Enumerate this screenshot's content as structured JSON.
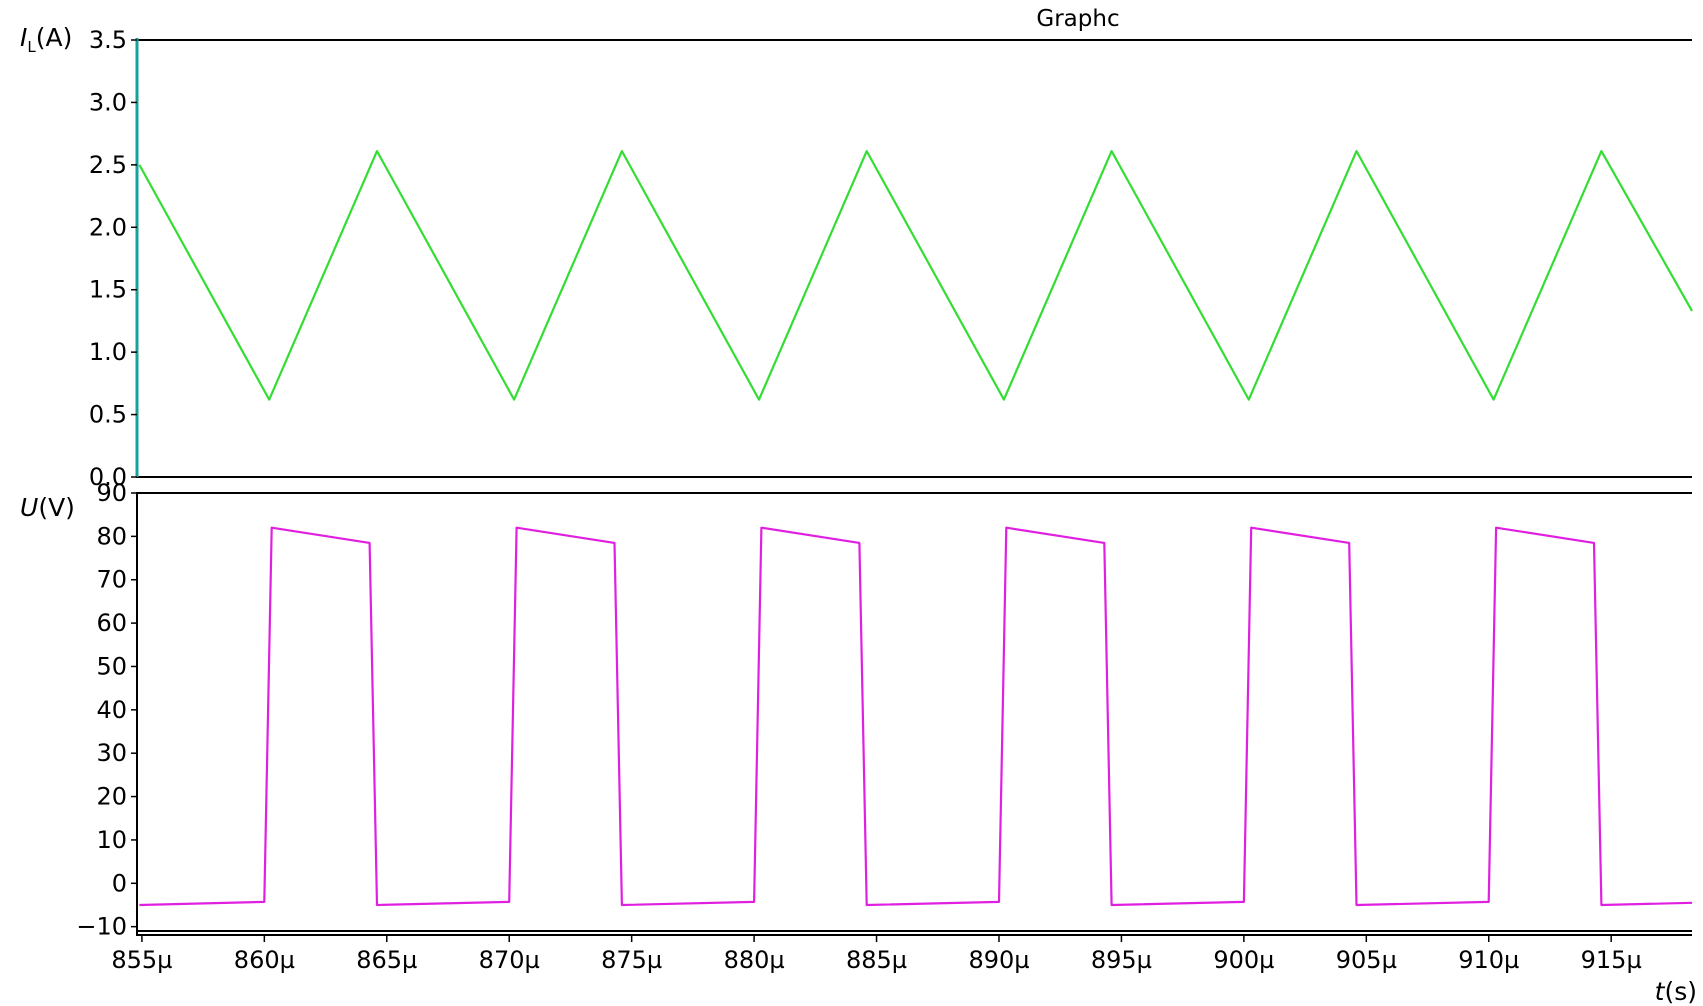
{
  "chart_data": {
    "type": "line",
    "title": "Graphc",
    "x_axis": {
      "label_var": "t",
      "label_unit": "(s)",
      "range": [
        854.8,
        918.3
      ],
      "ticks": [
        855,
        860,
        865,
        870,
        875,
        880,
        885,
        890,
        895,
        900,
        905,
        910,
        915
      ],
      "tick_labels": [
        "855µ",
        "860µ",
        "865µ",
        "870µ",
        "875µ",
        "880µ",
        "885µ",
        "890µ",
        "895µ",
        "900µ",
        "905µ",
        "910µ",
        "915µ"
      ]
    },
    "panels": [
      {
        "id": "current",
        "ylabel_var": "I",
        "ylabel_sub": "L",
        "ylabel_unit": "(A)",
        "ylim": [
          0,
          3.5
        ],
        "yticks": [
          "3.5",
          "3.0",
          "2.5",
          "2.0",
          "1.5",
          "1.0",
          "0.5",
          "0.0"
        ],
        "ytick_values": [
          3.5,
          3.0,
          2.5,
          2.0,
          1.5,
          1.0,
          0.5,
          0.0
        ],
        "series": [
          {
            "color": "#33dd33",
            "x": [
              854.9,
              860.2,
              864.6,
              870.2,
              874.6,
              880.2,
              884.6,
              890.2,
              894.6,
              900.2,
              904.6,
              910.2,
              914.6,
              918.3
            ],
            "y": [
              2.5,
              0.62,
              2.61,
              0.62,
              2.61,
              0.62,
              2.61,
              0.62,
              2.61,
              0.62,
              2.61,
              0.62,
              2.61,
              1.33
            ]
          }
        ]
      },
      {
        "id": "voltage",
        "ylabel_var": "U",
        "ylabel_unit": "(V)",
        "ylim": [
          -11,
          90
        ],
        "yticks": [
          "90",
          "80",
          "70",
          "60",
          "50",
          "40",
          "30",
          "20",
          "10",
          "0",
          "−10"
        ],
        "ytick_values": [
          90,
          80,
          70,
          60,
          50,
          40,
          30,
          20,
          10,
          0,
          -10
        ],
        "series": [
          {
            "color": "#e020e0",
            "x": [
              854.9,
              860.0,
              860.3,
              864.3,
              864.6,
              870.0,
              870.3,
              874.3,
              874.6,
              880.0,
              880.3,
              884.3,
              884.6,
              890.0,
              890.3,
              894.3,
              894.6,
              900.0,
              900.3,
              904.3,
              904.6,
              910.0,
              910.3,
              914.3,
              914.6,
              918.3
            ],
            "y": [
              -5,
              -4.3,
              82,
              78.5,
              -5,
              -4.3,
              82,
              78.5,
              -5,
              -4.3,
              82,
              78.5,
              -5,
              -4.3,
              82,
              78.5,
              -5,
              -4.3,
              82,
              78.5,
              -5,
              -4.3,
              82,
              78.5,
              -5,
              -4.5
            ]
          }
        ]
      }
    ]
  }
}
